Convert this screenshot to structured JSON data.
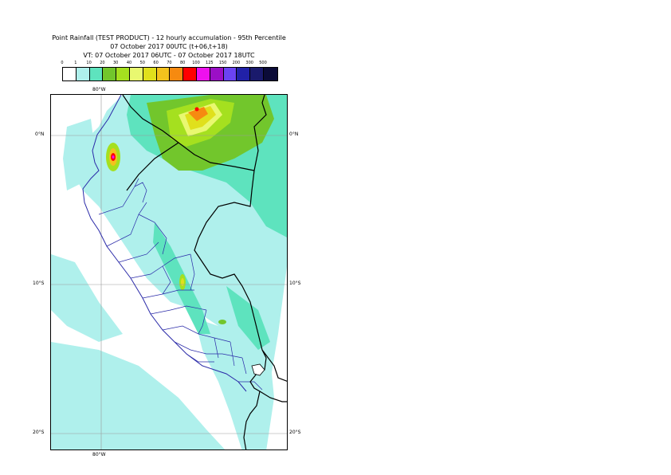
{
  "title": {
    "line1": "Point Rainfall (TEST PRODUCT) - 12 hourly accumulation - 95th Percentile",
    "line2": "07 October 2017 00UTC (t+06,t+18)",
    "line3": "VT: 07 October 2017 06UTC - 07 October 2017 18UTC"
  },
  "legend": {
    "thresholds": [
      "0",
      "1",
      "10",
      "20",
      "30",
      "40",
      "50",
      "60",
      "70",
      "80",
      "100",
      "125",
      "150",
      "200",
      "300",
      "500"
    ],
    "colors": [
      "#ffffff",
      "#aff0ec",
      "#5ee3be",
      "#72c62c",
      "#a5e01f",
      "#e9f870",
      "#e0e01c",
      "#f3c21d",
      "#f68a10",
      "#ff0000",
      "#ee11ee",
      "#9b0fc6",
      "#6b43f3",
      "#2121a8",
      "#1a1a6c",
      "#0b0b38"
    ]
  },
  "map": {
    "lat_labels": [
      "0°N",
      "10°S",
      "20°S"
    ],
    "lon_labels": [
      "80°W"
    ]
  }
}
